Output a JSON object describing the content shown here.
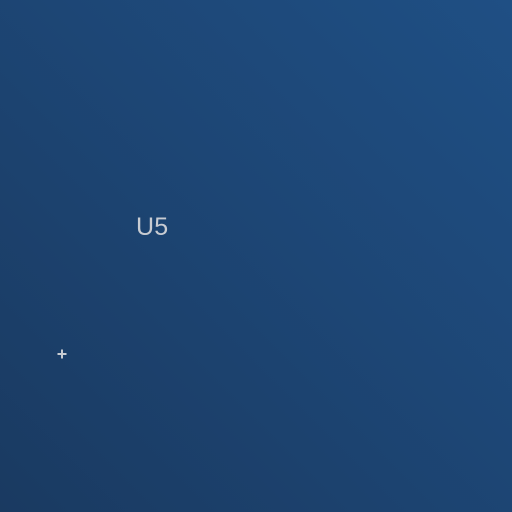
{
  "canvas": {
    "label": "U5",
    "marker_icon": "crosshair-plus-icon"
  },
  "colors": {
    "background_top_right": "#1f4f84",
    "background_bottom_left": "#1a3a61",
    "label_text": "#c8ccd2",
    "marker": "#c8ccd2"
  }
}
